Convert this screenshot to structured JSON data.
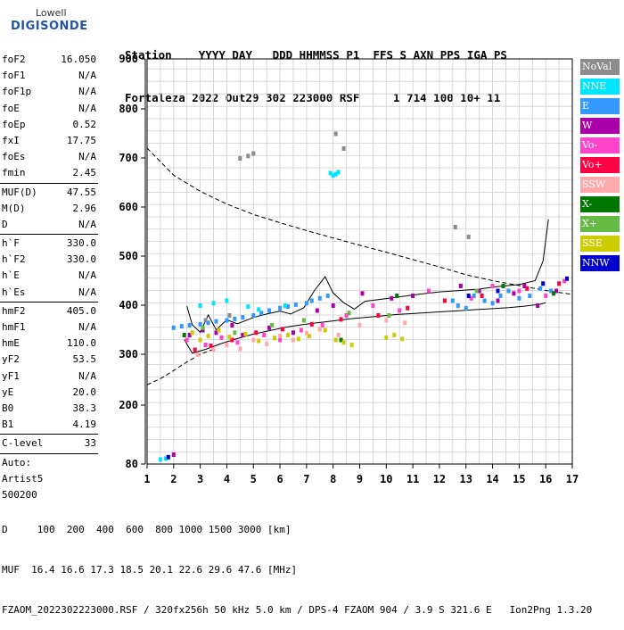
{
  "logo": {
    "line1": "Lowell",
    "line2": "DIGISONDE"
  },
  "header": {
    "row1": "Station    YYYY DAY   DDD HHMMSS P1  FFS S AXN PPS IGA PS",
    "row2": "Fortaleza 2022 Out29 302 223000 RSF     1 714 100 10+ 11"
  },
  "params": [
    {
      "k": "foF2",
      "v": "16.050"
    },
    {
      "k": "foF1",
      "v": "N/A"
    },
    {
      "k": "foF1p",
      "v": "N/A"
    },
    {
      "k": "foE",
      "v": "N/A"
    },
    {
      "k": "foEp",
      "v": "0.52"
    },
    {
      "k": "fxI",
      "v": "17.75"
    },
    {
      "k": "foEs",
      "v": "N/A"
    },
    {
      "k": "fmin",
      "v": "2.45"
    },
    {
      "k": "MUF(D)",
      "v": "47.55"
    },
    {
      "k": "M(D)",
      "v": "2.96"
    },
    {
      "k": "D",
      "v": "N/A"
    },
    {
      "k": "h`F",
      "v": "330.0"
    },
    {
      "k": "h`F2",
      "v": "330.0"
    },
    {
      "k": "h`E",
      "v": "N/A"
    },
    {
      "k": "h`Es",
      "v": "N/A"
    },
    {
      "k": "hmF2",
      "v": "405.0"
    },
    {
      "k": "hmF1",
      "v": "N/A"
    },
    {
      "k": "hmE",
      "v": "110.0"
    },
    {
      "k": "yF2",
      "v": "53.5"
    },
    {
      "k": "yF1",
      "v": "N/A"
    },
    {
      "k": "yE",
      "v": "20.0"
    },
    {
      "k": "B0",
      "v": "38.3"
    },
    {
      "k": "B1",
      "v": "4.19"
    },
    {
      "k": "C-level",
      "v": "33"
    },
    {
      "k": "Auto:",
      "v": ""
    },
    {
      "k": "Artist5",
      "v": ""
    },
    {
      "k": "500200",
      "v": ""
    }
  ],
  "legend": [
    {
      "label": "NoVal",
      "color": "#8c8c8c"
    },
    {
      "label": "NNE",
      "color": "#00e5ff"
    },
    {
      "label": "E",
      "color": "#3399ff"
    },
    {
      "label": "W",
      "color": "#aa00aa"
    },
    {
      "label": "Vo-",
      "color": "#ff44cc"
    },
    {
      "label": "Vo+",
      "color": "#ff0044"
    },
    {
      "label": "SSW",
      "color": "#ffaaaa"
    },
    {
      "label": "X-",
      "color": "#007700"
    },
    {
      "label": "X+",
      "color": "#66bb44"
    },
    {
      "label": "SSE",
      "color": "#cccc00"
    },
    {
      "label": "NNW",
      "color": "#0000cc"
    }
  ],
  "footer": {
    "line1": "D     100  200  400  600  800 1000 1500 3000 [km]",
    "line2": "MUF  16.4 16.6 17.3 18.5 20.1 22.6 29.6 47.6 [MHz]",
    "line3": "FZAOM_2022302223000.RSF / 320fx256h 50 kHz 5.0 km / DPS-4 FZAOM 904 / 3.9 S 321.6 E   Ion2Png 1.3.20"
  },
  "chart_data": {
    "type": "scatter",
    "xlim": [
      1,
      17
    ],
    "ylim": [
      80,
      900
    ],
    "x_ticks": [
      1,
      2,
      3,
      4,
      5,
      6,
      7,
      8,
      9,
      10,
      11,
      12,
      13,
      14,
      15,
      16,
      17
    ],
    "y_ticks": [
      80,
      200,
      300,
      400,
      500,
      600,
      700,
      800,
      900
    ],
    "grid": true,
    "legend_position": "right",
    "series": [
      {
        "name": "E",
        "points": [
          [
            2.0,
            355
          ],
          [
            2.3,
            358
          ],
          [
            2.6,
            360
          ],
          [
            3.0,
            362
          ],
          [
            3.3,
            365
          ],
          [
            3.6,
            368
          ],
          [
            4.0,
            370
          ],
          [
            4.3,
            373
          ],
          [
            4.6,
            376
          ],
          [
            5.0,
            380
          ],
          [
            5.3,
            385
          ],
          [
            5.6,
            390
          ],
          [
            6.0,
            395
          ],
          [
            6.3,
            398
          ],
          [
            6.6,
            402
          ],
          [
            7.0,
            405
          ],
          [
            7.2,
            410
          ],
          [
            7.5,
            415
          ],
          [
            7.8,
            420
          ],
          [
            12.5,
            410
          ],
          [
            12.7,
            400
          ],
          [
            13.0,
            395
          ],
          [
            13.3,
            420
          ],
          [
            13.7,
            410
          ],
          [
            14.0,
            405
          ],
          [
            14.3,
            420
          ],
          [
            14.6,
            430
          ],
          [
            15.0,
            415
          ],
          [
            15.4,
            420
          ],
          [
            15.8,
            435
          ],
          [
            16.2,
            430
          ]
        ]
      },
      {
        "name": "NNE",
        "points": [
          [
            7.9,
            670
          ],
          [
            8.0,
            665
          ],
          [
            8.1,
            668
          ],
          [
            8.2,
            672
          ],
          [
            1.5,
            90
          ],
          [
            1.7,
            92
          ],
          [
            3.0,
            400
          ],
          [
            3.5,
            405
          ],
          [
            4.0,
            410
          ],
          [
            4.8,
            398
          ],
          [
            5.2,
            392
          ],
          [
            6.2,
            400
          ]
        ]
      },
      {
        "name": "W",
        "points": [
          [
            2.6,
            340
          ],
          [
            3.1,
            350
          ],
          [
            3.6,
            345
          ],
          [
            4.2,
            360
          ],
          [
            4.6,
            340
          ],
          [
            5.6,
            355
          ],
          [
            6.5,
            345
          ],
          [
            7.4,
            390
          ],
          [
            8.0,
            400
          ],
          [
            9.1,
            425
          ],
          [
            10.2,
            415
          ],
          [
            11.0,
            420
          ],
          [
            12.8,
            440
          ],
          [
            13.5,
            430
          ],
          [
            14.2,
            410
          ],
          [
            14.8,
            425
          ],
          [
            15.2,
            440
          ],
          [
            15.7,
            400
          ],
          [
            16.4,
            430
          ],
          [
            2.0,
            100
          ]
        ]
      },
      {
        "name": "Vo-",
        "points": [
          [
            2.5,
            330
          ],
          [
            3.2,
            320
          ],
          [
            3.8,
            335
          ],
          [
            4.4,
            325
          ],
          [
            5.4,
            340
          ],
          [
            6.0,
            330
          ],
          [
            6.8,
            350
          ],
          [
            7.6,
            360
          ],
          [
            8.5,
            380
          ],
          [
            9.5,
            400
          ],
          [
            10.5,
            390
          ],
          [
            11.6,
            430
          ],
          [
            13.2,
            415
          ],
          [
            14.0,
            440
          ],
          [
            15.0,
            430
          ],
          [
            16.0,
            420
          ],
          [
            16.7,
            450
          ]
        ]
      },
      {
        "name": "Vo+",
        "points": [
          [
            2.8,
            310
          ],
          [
            3.4,
            318
          ],
          [
            4.2,
            330
          ],
          [
            5.1,
            345
          ],
          [
            6.1,
            352
          ],
          [
            7.2,
            362
          ],
          [
            8.3,
            372
          ],
          [
            9.7,
            380
          ],
          [
            10.8,
            395
          ],
          [
            12.2,
            410
          ],
          [
            13.6,
            420
          ],
          [
            15.3,
            435
          ],
          [
            16.5,
            445
          ]
        ]
      },
      {
        "name": "SSW",
        "points": [
          [
            2.9,
            300
          ],
          [
            3.5,
            310
          ],
          [
            4.0,
            320
          ],
          [
            4.5,
            312
          ],
          [
            5.0,
            330
          ],
          [
            5.5,
            322
          ],
          [
            6.0,
            338
          ],
          [
            6.5,
            330
          ],
          [
            7.0,
            344
          ],
          [
            7.5,
            352
          ],
          [
            8.2,
            340
          ],
          [
            9.0,
            360
          ],
          [
            10.0,
            370
          ],
          [
            10.7,
            365
          ]
        ]
      },
      {
        "name": "X-",
        "points": [
          [
            2.4,
            340
          ],
          [
            8.3,
            330
          ],
          [
            10.4,
            420
          ],
          [
            14.4,
            440
          ],
          [
            16.3,
            425
          ]
        ]
      },
      {
        "name": "X+",
        "points": [
          [
            3.1,
            355
          ],
          [
            4.3,
            345
          ],
          [
            5.7,
            360
          ],
          [
            6.9,
            370
          ],
          [
            8.6,
            385
          ],
          [
            10.1,
            380
          ],
          [
            13.4,
            430
          ]
        ]
      },
      {
        "name": "SSE",
        "points": [
          [
            2.7,
            345
          ],
          [
            3.0,
            330
          ],
          [
            3.3,
            338
          ],
          [
            3.7,
            350
          ],
          [
            4.1,
            336
          ],
          [
            4.7,
            342
          ],
          [
            5.2,
            328
          ],
          [
            5.8,
            334
          ],
          [
            6.3,
            340
          ],
          [
            6.7,
            332
          ],
          [
            7.1,
            338
          ],
          [
            7.7,
            350
          ],
          [
            8.1,
            330
          ],
          [
            8.4,
            325
          ],
          [
            8.7,
            320
          ],
          [
            10.0,
            335
          ],
          [
            10.3,
            340
          ],
          [
            10.6,
            332
          ]
        ]
      },
      {
        "name": "NNW",
        "points": [
          [
            1.8,
            95
          ],
          [
            14.2,
            430
          ],
          [
            15.9,
            445
          ],
          [
            16.8,
            455
          ],
          [
            13.1,
            420
          ]
        ]
      },
      {
        "name": "NoVal",
        "points": [
          [
            3.2,
            370
          ],
          [
            4.1,
            380
          ],
          [
            4.5,
            700
          ],
          [
            4.8,
            705
          ],
          [
            5.0,
            710
          ],
          [
            8.4,
            720
          ],
          [
            8.1,
            750
          ],
          [
            12.6,
            560
          ],
          [
            13.1,
            540
          ]
        ]
      }
    ],
    "lines": [
      {
        "style": "dashed",
        "points": [
          [
            1.0,
            720
          ],
          [
            2.0,
            665
          ],
          [
            3.0,
            632
          ],
          [
            4.0,
            606
          ],
          [
            5.0,
            585
          ],
          [
            6.0,
            568
          ],
          [
            7.0,
            552
          ],
          [
            8.0,
            537
          ],
          [
            9.0,
            522
          ],
          [
            10.0,
            508
          ],
          [
            11.0,
            493
          ],
          [
            12.0,
            478
          ],
          [
            13.0,
            462
          ],
          [
            14.0,
            450
          ],
          [
            15.0,
            440
          ],
          [
            16.0,
            430
          ],
          [
            17.0,
            422
          ]
        ]
      },
      {
        "style": "dashed",
        "points": [
          [
            1.0,
            240
          ],
          [
            1.5,
            252
          ],
          [
            2.0,
            268
          ],
          [
            2.5,
            285
          ],
          [
            3.0,
            300
          ],
          [
            3.5,
            310
          ]
        ]
      },
      {
        "style": "solid",
        "points": [
          [
            2.4,
            330
          ],
          [
            2.7,
            302
          ],
          [
            3.2,
            310
          ],
          [
            3.8,
            322
          ],
          [
            4.4,
            332
          ],
          [
            5.0,
            341
          ],
          [
            5.6,
            348
          ],
          [
            6.2,
            355
          ],
          [
            6.8,
            360
          ],
          [
            7.4,
            364
          ],
          [
            8.0,
            368
          ],
          [
            8.6,
            372
          ],
          [
            9.2,
            375
          ],
          [
            9.8,
            378
          ],
          [
            10.4,
            381
          ],
          [
            11.0,
            383
          ],
          [
            11.6,
            385
          ],
          [
            12.2,
            387
          ],
          [
            12.8,
            389
          ],
          [
            13.4,
            391
          ],
          [
            14.0,
            393
          ],
          [
            14.6,
            395
          ],
          [
            15.2,
            398
          ],
          [
            15.8,
            402
          ],
          [
            16.0,
            405
          ]
        ]
      },
      {
        "style": "solid",
        "points": [
          [
            2.5,
            398
          ],
          [
            2.7,
            360
          ],
          [
            3.0,
            345
          ],
          [
            3.3,
            380
          ],
          [
            3.6,
            350
          ],
          [
            4.0,
            370
          ],
          [
            4.4,
            362
          ],
          [
            5.0,
            375
          ],
          [
            5.5,
            382
          ],
          [
            6.0,
            388
          ],
          [
            6.4,
            382
          ],
          [
            6.9,
            395
          ],
          [
            7.3,
            430
          ],
          [
            7.7,
            458
          ],
          [
            8.0,
            425
          ],
          [
            8.4,
            405
          ],
          [
            8.8,
            392
          ],
          [
            9.2,
            408
          ],
          [
            9.8,
            412
          ],
          [
            10.5,
            417
          ],
          [
            11.2,
            422
          ],
          [
            12.0,
            427
          ],
          [
            12.8,
            430
          ],
          [
            13.5,
            433
          ],
          [
            14.2,
            438
          ],
          [
            15.0,
            442
          ],
          [
            15.6,
            450
          ],
          [
            15.9,
            490
          ],
          [
            16.1,
            575
          ]
        ]
      }
    ]
  }
}
